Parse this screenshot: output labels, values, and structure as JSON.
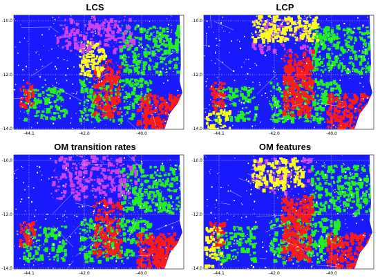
{
  "panels": [
    {
      "id": "lcs",
      "title": "LCS"
    },
    {
      "id": "lcp",
      "title": "LCP"
    },
    {
      "id": "om-transition-rates",
      "title": "OM transition rates"
    },
    {
      "id": "om-features",
      "title": "OM features"
    }
  ],
  "axes": {
    "x_ticks": [
      "-44.1",
      "-42.0",
      "-40.0"
    ],
    "y_ticks": [
      "-10.0",
      "-12.0",
      "-14.0"
    ]
  },
  "colors": {
    "blue": "#1a1aff",
    "green": "#22ee22",
    "red": "#ff1a1a",
    "yellow": "#ffff1a",
    "magenta": "#cc44ee",
    "white": "#ffffff"
  }
}
